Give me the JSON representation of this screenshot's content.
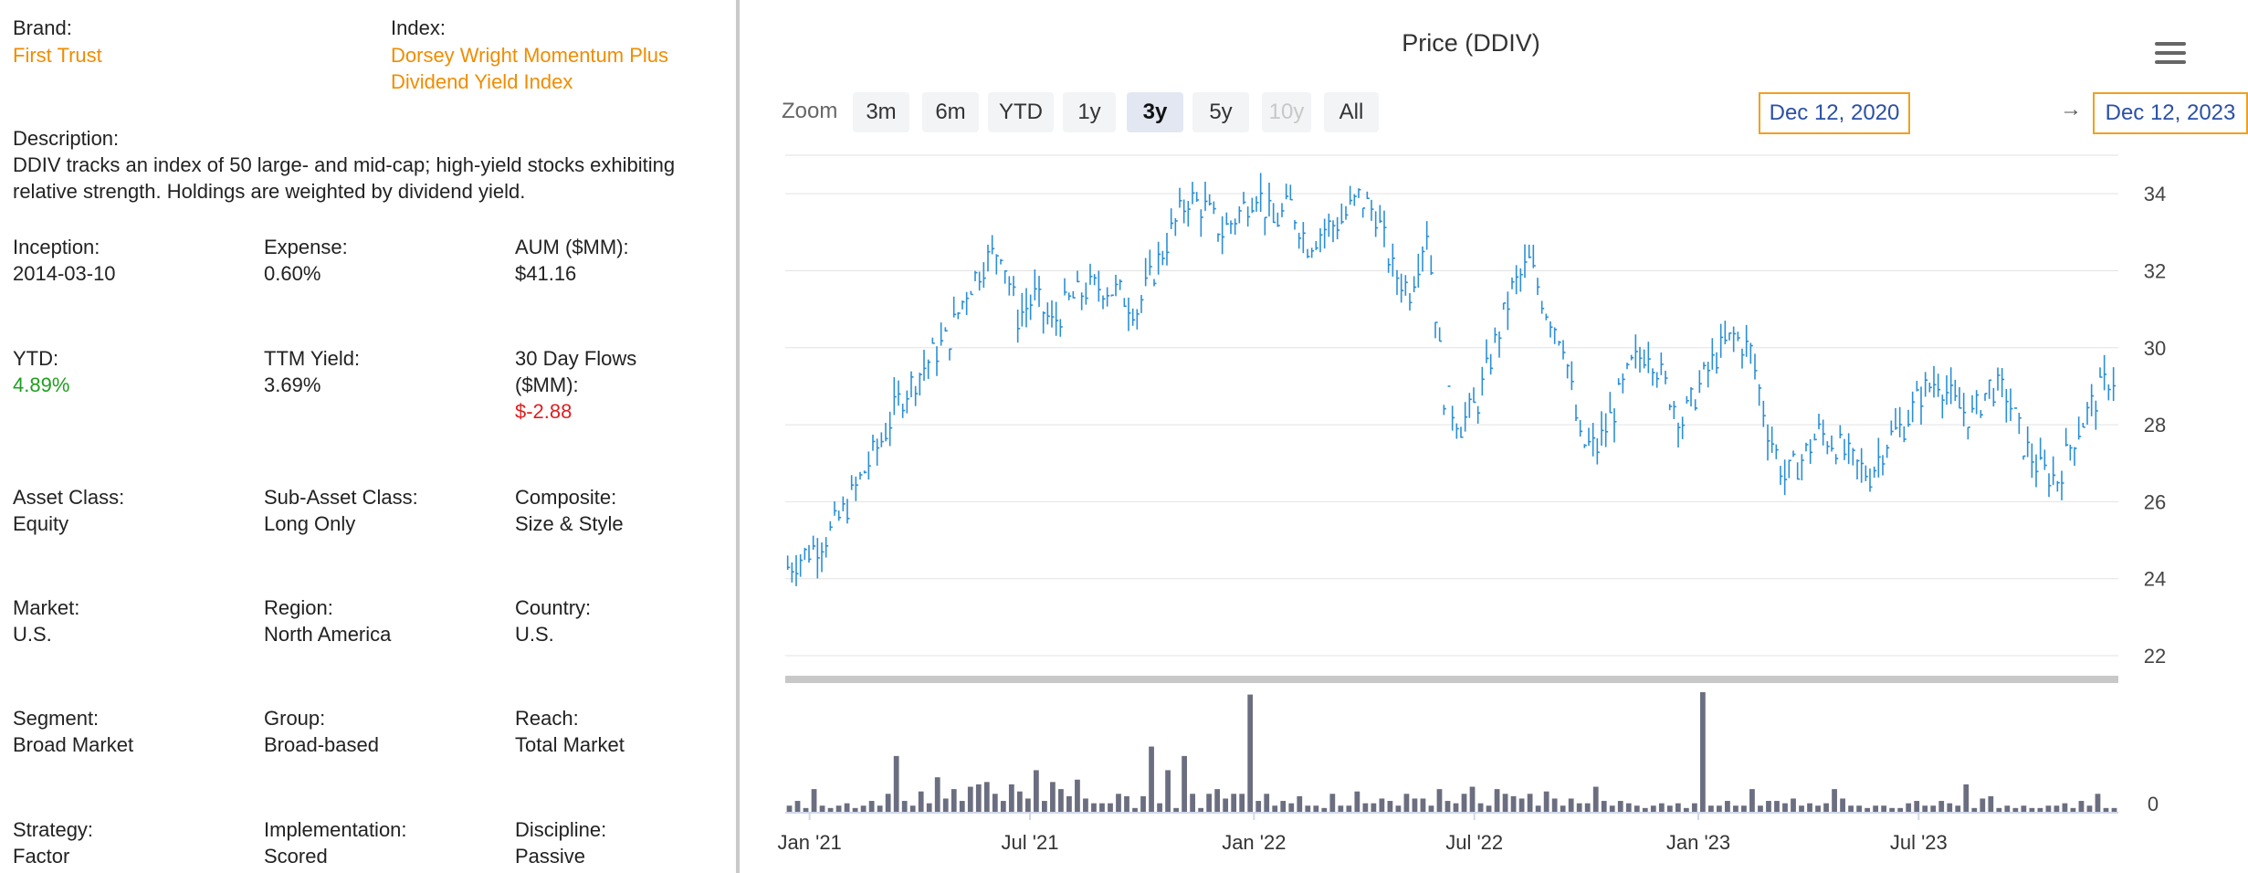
{
  "info": {
    "brand_label": "Brand:",
    "brand_value": "First Trust",
    "index_label": "Index:",
    "index_line1": "Dorsey Wright Momentum Plus",
    "index_line2": "Dividend Yield Index",
    "description_label": "Description:",
    "description_text": "DDIV tracks an index of 50 large- and mid-cap; high-yield stocks exhibiting relative strength. Holdings are weighted by dividend yield.",
    "inception_label": "Inception:",
    "inception_value": "2014-03-10",
    "expense_label": "Expense:",
    "expense_value": "0.60%",
    "aum_label": "AUM ($MM):",
    "aum_value": "$41.16",
    "ytd_label": "YTD:",
    "ytd_value": "4.89%",
    "ttm_label": "TTM Yield:",
    "ttm_value": "3.69%",
    "flows_label_1": "30 Day Flows",
    "flows_label_2": "($MM):",
    "flows_value": "$-2.88",
    "asset_class_label": "Asset Class:",
    "asset_class_value": "Equity",
    "sub_asset_label": "Sub-Asset Class:",
    "sub_asset_value": "Long Only",
    "composite_label": "Composite:",
    "composite_value": "Size & Style",
    "market_label": "Market:",
    "market_value": "U.S.",
    "region_label": "Region:",
    "region_value": "North America",
    "country_label": "Country:",
    "country_value": "U.S.",
    "segment_label": "Segment:",
    "segment_value": "Broad Market",
    "group_label": "Group:",
    "group_value": "Broad-based",
    "reach_label": "Reach:",
    "reach_value": "Total Market",
    "strategy_label": "Strategy:",
    "strategy_value": "Factor",
    "implementation_label": "Implementation:",
    "implementation_value": "Scored",
    "discipline_label": "Discipline:",
    "discipline_value": "Passive"
  },
  "toolbar": {
    "zoom_label": "Zoom",
    "buttons": [
      "3m",
      "6m",
      "YTD",
      "1y",
      "3y",
      "5y",
      "10y",
      "All"
    ],
    "active": "3y",
    "disabled": [
      "10y"
    ],
    "date_from": "Dec 12, 2020",
    "arrow": "→",
    "date_to": "Dec 12, 2023"
  },
  "colors": {
    "orange": "#f08c00",
    "green": "#1f9e1f",
    "red": "#e01e1e",
    "price_line": "#2b8fd6",
    "volume_bar": "#6b6e80",
    "date_border": "#f0a020"
  },
  "chart_data": {
    "type": "line",
    "title": "Price (DDIV)",
    "price_axis": {
      "ticks": [
        22,
        24,
        26,
        28,
        30,
        32,
        34
      ],
      "range": [
        22,
        35
      ],
      "position": "right"
    },
    "volume_axis": {
      "ticks": [
        0
      ],
      "position": "right"
    },
    "x_ticks": [
      "Jan '21",
      "Jul '21",
      "Jan '22",
      "Jul '22",
      "Jan '23",
      "Jul '23"
    ],
    "grid": true,
    "series": [
      {
        "points": [
          [
            "2020-12-14",
            24.3
          ],
          [
            "2021-01-04",
            24.8
          ],
          [
            "2021-01-18",
            25.2
          ],
          [
            "2021-02-01",
            25.9
          ],
          [
            "2021-02-15",
            26.8
          ],
          [
            "2021-03-01",
            27.6
          ],
          [
            "2021-03-15",
            28.6
          ],
          [
            "2021-03-29",
            29.2
          ],
          [
            "2021-04-12",
            29.8
          ],
          [
            "2021-04-26",
            30.3
          ],
          [
            "2021-05-10",
            31.5
          ],
          [
            "2021-05-24",
            32.2
          ],
          [
            "2021-06-07",
            32.6
          ],
          [
            "2021-06-21",
            30.8
          ],
          [
            "2021-07-05",
            31.3
          ],
          [
            "2021-07-19",
            30.6
          ],
          [
            "2021-08-02",
            31.2
          ],
          [
            "2021-08-16",
            31.5
          ],
          [
            "2021-08-30",
            31.6
          ],
          [
            "2021-09-13",
            31.4
          ],
          [
            "2021-09-27",
            31.0
          ],
          [
            "2021-10-11",
            32.0
          ],
          [
            "2021-10-25",
            33.0
          ],
          [
            "2021-11-08",
            33.9
          ],
          [
            "2021-11-22",
            33.6
          ],
          [
            "2021-12-06",
            33.0
          ],
          [
            "2021-12-20",
            33.5
          ],
          [
            "2022-01-03",
            34.1
          ],
          [
            "2022-01-17",
            33.2
          ],
          [
            "2022-01-31",
            33.7
          ],
          [
            "2022-02-14",
            32.7
          ],
          [
            "2022-02-28",
            33.1
          ],
          [
            "2022-03-14",
            33.3
          ],
          [
            "2022-03-28",
            33.9
          ],
          [
            "2022-04-11",
            33.5
          ],
          [
            "2022-04-25",
            32.0
          ],
          [
            "2022-05-09",
            31.5
          ],
          [
            "2022-05-23",
            33.1
          ],
          [
            "2022-06-06",
            28.8
          ],
          [
            "2022-06-20",
            28.0
          ],
          [
            "2022-07-04",
            28.6
          ],
          [
            "2022-07-18",
            30.1
          ],
          [
            "2022-08-01",
            31.5
          ],
          [
            "2022-08-15",
            32.2
          ],
          [
            "2022-08-29",
            31.0
          ],
          [
            "2022-09-12",
            30.2
          ],
          [
            "2022-09-26",
            27.5
          ],
          [
            "2022-10-10",
            27.4
          ],
          [
            "2022-10-24",
            28.4
          ],
          [
            "2022-11-07",
            29.5
          ],
          [
            "2022-11-21",
            30.0
          ],
          [
            "2022-12-05",
            29.0
          ],
          [
            "2022-12-19",
            28.1
          ],
          [
            "2023-01-02",
            29.0
          ],
          [
            "2023-01-16",
            29.8
          ],
          [
            "2023-01-30",
            30.3
          ],
          [
            "2023-02-13",
            29.9
          ],
          [
            "2023-02-27",
            27.9
          ],
          [
            "2023-03-13",
            26.6
          ],
          [
            "2023-03-27",
            27.1
          ],
          [
            "2023-04-10",
            27.8
          ],
          [
            "2023-04-24",
            27.5
          ],
          [
            "2023-05-08",
            27.0
          ],
          [
            "2023-05-22",
            26.7
          ],
          [
            "2023-06-05",
            27.6
          ],
          [
            "2023-06-19",
            28.0
          ],
          [
            "2023-07-03",
            28.8
          ],
          [
            "2023-07-17",
            29.2
          ],
          [
            "2023-07-31",
            28.5
          ],
          [
            "2023-08-14",
            28.2
          ],
          [
            "2023-08-28",
            29.0
          ],
          [
            "2023-09-11",
            28.8
          ],
          [
            "2023-09-25",
            27.5
          ],
          [
            "2023-10-09",
            26.8
          ],
          [
            "2023-10-23",
            26.6
          ],
          [
            "2023-11-06",
            27.7
          ],
          [
            "2023-11-20",
            28.5
          ],
          [
            "2023-12-04",
            29.2
          ],
          [
            "2023-12-12",
            29.2
          ]
        ]
      }
    ],
    "volume": [
      3,
      5,
      2,
      10,
      3,
      2,
      3,
      4,
      2,
      3,
      5,
      3,
      8,
      24,
      5,
      3,
      9,
      4,
      15,
      6,
      10,
      5,
      11,
      12,
      13,
      8,
      5,
      12,
      9,
      6,
      18,
      5,
      13,
      10,
      7,
      14,
      6,
      4,
      4,
      4,
      8,
      7,
      2,
      7,
      28,
      4,
      18,
      2,
      24,
      8,
      2,
      8,
      10,
      6,
      8,
      8,
      50,
      5,
      8,
      3,
      5,
      4,
      7,
      3,
      3,
      2,
      8,
      3,
      3,
      9,
      4,
      4,
      6,
      5,
      3,
      8,
      6,
      6,
      3,
      10,
      5,
      4,
      8,
      11,
      4,
      3,
      10,
      8,
      7,
      6,
      8,
      3,
      9,
      6,
      3,
      6,
      4,
      4,
      11,
      5,
      3,
      5,
      4,
      3,
      2,
      3,
      4,
      3,
      4,
      2,
      4,
      51,
      3,
      3,
      5,
      3,
      3,
      10,
      3,
      5,
      5,
      4,
      6,
      3,
      4,
      3,
      4,
      10,
      6,
      3,
      3,
      2,
      3,
      3,
      2,
      2,
      4,
      5,
      3,
      3,
      5,
      4,
      3,
      12,
      2,
      6,
      7,
      2,
      3,
      2,
      3,
      2,
      2,
      3,
      3,
      4,
      2,
      5,
      3,
      8,
      2,
      2
    ]
  }
}
